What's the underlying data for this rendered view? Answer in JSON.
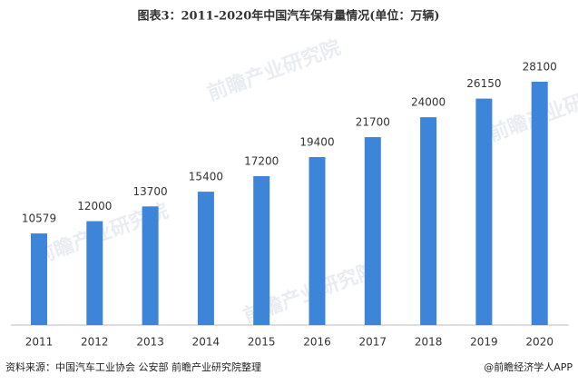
{
  "chart_data": {
    "type": "bar",
    "title": "图表3：2011-2020年中国汽车保有量情况(单位：万辆)",
    "categories": [
      "2011",
      "2012",
      "2013",
      "2014",
      "2015",
      "2016",
      "2017",
      "2018",
      "2019",
      "2020"
    ],
    "values": [
      10579,
      12000,
      13700,
      15400,
      17200,
      19400,
      21700,
      24000,
      26150,
      28100
    ],
    "color": "#3d85d9",
    "source": "资料来源：中国汽车工业协会 公安部 前瞻产业研究院整理",
    "credit": "@前瞻经济学人APP",
    "watermark": "前瞻产业研究院"
  }
}
